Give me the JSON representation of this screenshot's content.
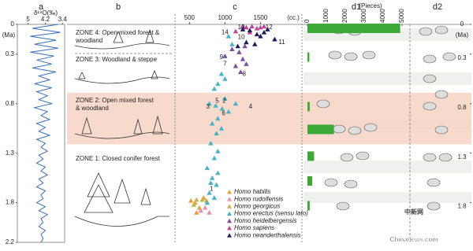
{
  "chart_data": [
    {
      "type": "line",
      "label": "a",
      "xlabel": "δ¹⁸O(‰)",
      "xlim": [
        5.5,
        3.3
      ],
      "xticks": [
        5,
        4.2,
        3.4
      ],
      "ylabel": "(Ma)",
      "ylim": [
        0,
        2.2
      ],
      "yticks": [
        0,
        0.3,
        0.8,
        1.3,
        1.8,
        2.2
      ],
      "color": "#3b6fb6",
      "x": [
        0,
        0.04,
        0.08,
        0.12,
        0.16,
        0.2,
        0.24,
        0.28,
        0.32,
        0.36,
        0.4,
        0.44,
        0.48,
        0.52,
        0.56,
        0.6,
        0.64,
        0.68,
        0.72,
        0.76,
        0.8,
        0.84,
        0.88,
        0.92,
        0.96,
        1,
        1.04,
        1.08,
        1.12,
        1.16,
        1.2,
        1.24,
        1.28,
        1.32,
        1.36,
        1.4,
        1.44,
        1.48,
        1.52,
        1.56,
        1.6,
        1.64,
        1.68,
        1.72,
        1.76,
        1.8,
        1.84,
        1.88,
        1.92,
        1.96,
        2,
        2.04,
        2.08,
        2.12,
        2.16,
        2.2
      ],
      "values": [
        3.6,
        4.8,
        3.5,
        4.9,
        3.7,
        4.7,
        3.6,
        4.9,
        3.8,
        4.6,
        3.9,
        4.8,
        3.7,
        4.5,
        4.0,
        4.7,
        3.9,
        4.6,
        4.1,
        4.5,
        3.9,
        4.7,
        4.1,
        4.4,
        4.0,
        4.6,
        4.2,
        4.5,
        4.0,
        4.6,
        4.2,
        4.4,
        4.1,
        4.5,
        4.3,
        4.6,
        4.2,
        4.4,
        4.1,
        4.5,
        4.3,
        4.6,
        4.2,
        4.4,
        4.3,
        4.6,
        4.2,
        4.5,
        4.1,
        4.4,
        4.3,
        4.5,
        4.2,
        4.4,
        4.3,
        4.4
      ]
    },
    {
      "type": "zones",
      "label": "b",
      "highlight": {
        "from": 0.69,
        "to": 1.21,
        "color": "#f7d3c3"
      },
      "zones": [
        {
          "lines": [
            "ZONE 4: Open mixed forest &",
            "woodland"
          ]
        },
        {
          "lines": [
            "ZONE 3: Woodland & steppe"
          ]
        },
        {
          "lines": [
            "ZONE 2: Open mixed forest",
            "& woodland"
          ]
        },
        {
          "lines": [
            "ZONE 1: Closed conifer forest"
          ]
        }
      ]
    },
    {
      "type": "scatter",
      "label": "c",
      "xunit": "(cc.)",
      "xlim": [
        330,
        2050
      ],
      "xticks": [
        500,
        1000,
        1500
      ],
      "annotation_color": "#d9332b",
      "series": [
        {
          "name": "Homo habilis",
          "color": "#e8a035",
          "x": [
            520,
            580,
            640,
            600,
            700
          ],
          "y": [
            1.78,
            1.8,
            1.85,
            1.9,
            1.75
          ]
        },
        {
          "name": "Homo rudolfensis",
          "color": "#e58fa8",
          "x": [
            720,
            780,
            660
          ],
          "y": [
            1.85,
            1.9,
            1.88
          ]
        },
        {
          "name": "Homo georgicus",
          "color": "#c8b24a",
          "x": [
            600,
            680,
            740,
            560
          ],
          "y": [
            1.77,
            1.77,
            1.78,
            1.82
          ]
        },
        {
          "name": "Homo erectus (sensu lato)",
          "color": "#45b3c8",
          "x": [
            1050,
            1100,
            950,
            1000,
            900,
            850,
            1000,
            1150,
            780,
            870,
            960,
            1050,
            900,
            820,
            950,
            880,
            800,
            900,
            850,
            750,
            900,
            820,
            880,
            780,
            850,
            750,
            800
          ],
          "y": [
            0.12,
            0.2,
            0.5,
            0.55,
            0.6,
            0.65,
            0.75,
            0.8,
            0.8,
            0.82,
            0.85,
            0.88,
            0.95,
            1.0,
            1.05,
            1.1,
            1.2,
            1.28,
            1.35,
            1.45,
            1.5,
            1.55,
            1.62,
            1.7,
            1.75,
            1.8,
            1.6
          ]
        },
        {
          "name": "Homo heidelbergensis",
          "color": "#7a4e9e",
          "x": [
            1100,
            1200,
            1250,
            1300,
            1150,
            1220,
            1000,
            1280
          ],
          "y": [
            0.25,
            0.28,
            0.35,
            0.4,
            0.42,
            0.48,
            0.32,
            0.22
          ]
        },
        {
          "name": "Homo sapiens",
          "color": "#c2419a",
          "x": [
            1250,
            1300,
            1380,
            1450,
            1500,
            1550,
            1150,
            1350
          ],
          "y": [
            0.02,
            0.03,
            0.02,
            0.04,
            0.03,
            0.02,
            0.07,
            0.08
          ]
        },
        {
          "name": "Homo neanderthalensis",
          "color": "#1c1c5c",
          "x": [
            1250,
            1350,
            1450,
            1550,
            1700,
            1300,
            1420,
            1180,
            1500,
            1600
          ],
          "y": [
            0.05,
            0.06,
            0.1,
            0.08,
            0.15,
            0.18,
            0.2,
            0.22,
            0.12,
            0.05
          ]
        }
      ],
      "annotations": [
        {
          "text": "13",
          "x": 1230,
          "y": 0.0
        },
        {
          "text": "12",
          "x": 1620,
          "y": 0.0
        },
        {
          "text": "14",
          "x": 1000,
          "y": 0.05
        },
        {
          "text": "11",
          "x": 1800,
          "y": 0.15
        },
        {
          "text": "10",
          "x": 1230,
          "y": 0.1
        },
        {
          "text": "9",
          "x": 950,
          "y": 0.3
        },
        {
          "text": "7",
          "x": 1000,
          "y": 0.37
        },
        {
          "text": "8",
          "x": 1270,
          "y": 0.47
        },
        {
          "text": "3",
          "x": 760,
          "y": 0.8
        },
        {
          "text": "5",
          "x": 890,
          "y": 0.74
        },
        {
          "text": "2",
          "x": 990,
          "y": 0.74
        },
        {
          "text": "4",
          "x": 1360,
          "y": 0.8
        },
        {
          "text": "6",
          "x": 980,
          "y": 0.87
        },
        {
          "text": "1",
          "x": 810,
          "y": 1.63
        }
      ]
    },
    {
      "type": "hbar",
      "label": "d1",
      "xlabel": "(Pieces)",
      "xlim": [
        0,
        5000
      ],
      "xticks": [
        0,
        1000,
        2000,
        3000,
        4000,
        5000
      ],
      "color": "#3aa935",
      "y": [
        0.04,
        0.33,
        0.83,
        1.06,
        1.33,
        1.58,
        1.83
      ],
      "values": [
        4900,
        100,
        120,
        1400,
        350,
        250,
        120
      ]
    },
    {
      "type": "axis",
      "label": "d2",
      "ylabel": "(Ma)",
      "ylim": [
        0,
        2.2
      ],
      "yticks": [
        0,
        0.3,
        0.8,
        1.3,
        1.8
      ]
    }
  ],
  "watermark": {
    "title": "中新网",
    "site": "Chinanews.com"
  }
}
